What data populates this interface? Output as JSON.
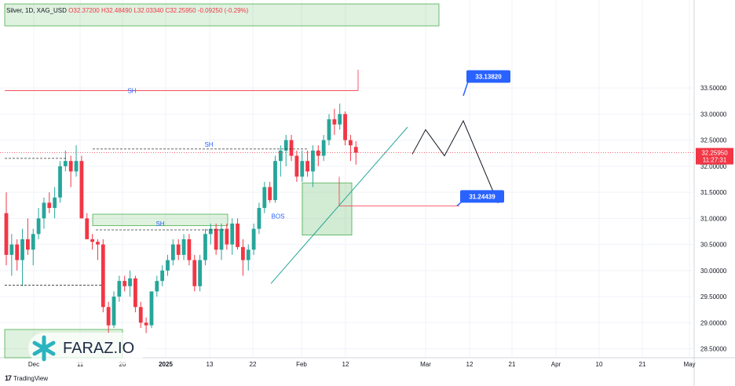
{
  "header": {
    "symbol": "Silver, 1D, XAG_USD",
    "o": "O32.37200",
    "h": "H32.48490",
    "l": "L32.03340",
    "c": "C32.25950",
    "chg": "-0.09250 (-0.29%)"
  },
  "brand": "FARAZ.IO",
  "footer": "TradingView",
  "colors": {
    "up": "#26a69a",
    "down": "#f23645",
    "zone": "#4caf50",
    "label": "#2962ff"
  },
  "chart_data": {
    "type": "candlestick",
    "ylim": [
      28.2,
      35.6
    ],
    "y_ticks": [
      "33.50000",
      "33.00000",
      "32.50000",
      "32.00000",
      "31.50000",
      "31.00000",
      "30.50000",
      "30.00000",
      "29.50000",
      "29.00000",
      "28.50000"
    ],
    "x_ticks": [
      "Dec",
      "11",
      "20",
      "2025",
      "13",
      "22",
      "Feb",
      "12",
      "Mar",
      "12",
      "21",
      "Apr",
      "10",
      "21",
      "May"
    ],
    "last_price": "32.25950",
    "countdown": "11:27:31",
    "annotations": {
      "sh_labels": [
        "SH",
        "SH",
        "SH"
      ],
      "bos": "BOS",
      "target_high": "33.13820",
      "target_low": "31.24439"
    },
    "candles": [
      {
        "o": 31.1,
        "h": 31.5,
        "l": 30.1,
        "c": 30.3
      },
      {
        "o": 30.3,
        "h": 30.7,
        "l": 29.9,
        "c": 30.5
      },
      {
        "o": 30.5,
        "h": 30.6,
        "l": 30.0,
        "c": 30.2
      },
      {
        "o": 30.2,
        "h": 30.8,
        "l": 29.7,
        "c": 30.6
      },
      {
        "o": 30.6,
        "h": 31.0,
        "l": 30.3,
        "c": 30.4
      },
      {
        "o": 30.4,
        "h": 30.8,
        "l": 30.1,
        "c": 30.7
      },
      {
        "o": 30.7,
        "h": 31.2,
        "l": 30.6,
        "c": 31.0
      },
      {
        "o": 31.0,
        "h": 31.4,
        "l": 30.8,
        "c": 31.3
      },
      {
        "o": 31.3,
        "h": 31.5,
        "l": 31.1,
        "c": 31.2
      },
      {
        "o": 31.2,
        "h": 31.6,
        "l": 31.0,
        "c": 31.4
      },
      {
        "o": 31.4,
        "h": 32.1,
        "l": 31.3,
        "c": 32.0
      },
      {
        "o": 32.0,
        "h": 32.3,
        "l": 31.9,
        "c": 32.1
      },
      {
        "o": 32.1,
        "h": 32.2,
        "l": 31.6,
        "c": 31.9
      },
      {
        "o": 31.9,
        "h": 32.4,
        "l": 31.8,
        "c": 32.1
      },
      {
        "o": 32.1,
        "h": 32.2,
        "l": 31.0,
        "c": 31.0
      },
      {
        "o": 31.0,
        "h": 31.1,
        "l": 30.6,
        "c": 30.6
      },
      {
        "o": 30.6,
        "h": 30.7,
        "l": 30.4,
        "c": 30.55
      },
      {
        "o": 30.55,
        "h": 30.6,
        "l": 30.2,
        "c": 30.5
      },
      {
        "o": 30.5,
        "h": 30.6,
        "l": 29.2,
        "c": 29.3
      },
      {
        "o": 29.3,
        "h": 29.4,
        "l": 28.8,
        "c": 28.95
      },
      {
        "o": 28.95,
        "h": 29.6,
        "l": 28.9,
        "c": 29.5
      },
      {
        "o": 29.5,
        "h": 29.9,
        "l": 29.4,
        "c": 29.8
      },
      {
        "o": 29.8,
        "h": 29.9,
        "l": 29.6,
        "c": 29.7
      },
      {
        "o": 29.7,
        "h": 30.0,
        "l": 29.5,
        "c": 29.85
      },
      {
        "o": 29.85,
        "h": 29.9,
        "l": 29.2,
        "c": 29.3
      },
      {
        "o": 29.3,
        "h": 29.4,
        "l": 28.9,
        "c": 29.0
      },
      {
        "o": 29.0,
        "h": 29.1,
        "l": 28.8,
        "c": 28.95
      },
      {
        "o": 28.95,
        "h": 29.6,
        "l": 28.9,
        "c": 29.6
      },
      {
        "o": 29.6,
        "h": 29.9,
        "l": 29.5,
        "c": 29.8
      },
      {
        "o": 29.8,
        "h": 30.1,
        "l": 29.7,
        "c": 30.0
      },
      {
        "o": 30.0,
        "h": 30.3,
        "l": 29.9,
        "c": 30.2
      },
      {
        "o": 30.2,
        "h": 30.6,
        "l": 30.1,
        "c": 30.5
      },
      {
        "o": 30.5,
        "h": 30.6,
        "l": 30.2,
        "c": 30.3
      },
      {
        "o": 30.3,
        "h": 30.7,
        "l": 30.2,
        "c": 30.6
      },
      {
        "o": 30.6,
        "h": 30.7,
        "l": 30.1,
        "c": 30.2
      },
      {
        "o": 30.2,
        "h": 30.3,
        "l": 29.6,
        "c": 29.7
      },
      {
        "o": 29.7,
        "h": 30.3,
        "l": 29.6,
        "c": 30.2
      },
      {
        "o": 30.2,
        "h": 30.8,
        "l": 30.1,
        "c": 30.7
      },
      {
        "o": 30.7,
        "h": 30.9,
        "l": 30.5,
        "c": 30.8
      },
      {
        "o": 30.8,
        "h": 30.9,
        "l": 30.3,
        "c": 30.4
      },
      {
        "o": 30.4,
        "h": 30.9,
        "l": 30.2,
        "c": 30.8
      },
      {
        "o": 30.8,
        "h": 30.9,
        "l": 30.4,
        "c": 30.5
      },
      {
        "o": 30.5,
        "h": 31.0,
        "l": 30.3,
        "c": 30.9
      },
      {
        "o": 30.9,
        "h": 31.0,
        "l": 30.4,
        "c": 30.45
      },
      {
        "o": 30.45,
        "h": 30.6,
        "l": 29.9,
        "c": 30.2
      },
      {
        "o": 30.2,
        "h": 30.5,
        "l": 30.0,
        "c": 30.4
      },
      {
        "o": 30.4,
        "h": 30.9,
        "l": 30.3,
        "c": 30.8
      },
      {
        "o": 30.8,
        "h": 31.3,
        "l": 30.7,
        "c": 31.2
      },
      {
        "o": 31.2,
        "h": 31.7,
        "l": 31.1,
        "c": 31.6
      },
      {
        "o": 31.6,
        "h": 31.7,
        "l": 31.3,
        "c": 31.35
      },
      {
        "o": 31.35,
        "h": 32.2,
        "l": 31.3,
        "c": 32.1
      },
      {
        "o": 32.1,
        "h": 32.4,
        "l": 31.8,
        "c": 32.3
      },
      {
        "o": 32.3,
        "h": 32.6,
        "l": 32.0,
        "c": 32.5
      },
      {
        "o": 32.5,
        "h": 32.6,
        "l": 32.1,
        "c": 32.2
      },
      {
        "o": 32.2,
        "h": 32.3,
        "l": 31.7,
        "c": 31.8
      },
      {
        "o": 31.8,
        "h": 32.3,
        "l": 31.7,
        "c": 32.1
      },
      {
        "o": 32.1,
        "h": 32.3,
        "l": 31.8,
        "c": 31.9
      },
      {
        "o": 31.9,
        "h": 32.4,
        "l": 31.6,
        "c": 32.3
      },
      {
        "o": 32.3,
        "h": 32.4,
        "l": 32.0,
        "c": 32.2
      },
      {
        "o": 32.2,
        "h": 32.6,
        "l": 32.1,
        "c": 32.5
      },
      {
        "o": 32.5,
        "h": 33.0,
        "l": 32.4,
        "c": 32.9
      },
      {
        "o": 32.9,
        "h": 33.1,
        "l": 32.6,
        "c": 32.8
      },
      {
        "o": 32.8,
        "h": 33.2,
        "l": 32.7,
        "c": 33.0
      },
      {
        "o": 33.0,
        "h": 33.05,
        "l": 32.4,
        "c": 32.5
      },
      {
        "o": 32.5,
        "h": 32.6,
        "l": 32.1,
        "c": 32.4
      },
      {
        "o": 32.37,
        "h": 32.48,
        "l": 32.03,
        "c": 32.26
      }
    ]
  }
}
